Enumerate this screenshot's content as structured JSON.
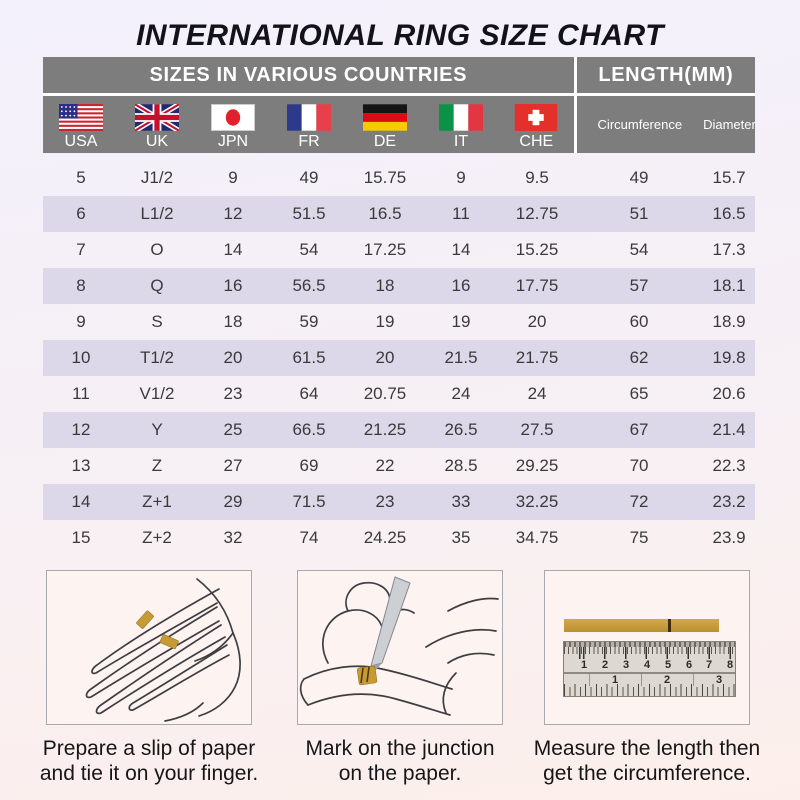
{
  "title": "INTERNATIONAL RING SIZE CHART",
  "table": {
    "header_left": "SIZES IN VARIOUS COUNTRIES",
    "header_right": "LENGTH(MM)",
    "countries": [
      "USA",
      "UK",
      "JPN",
      "FR",
      "DE",
      "IT",
      "CHE"
    ],
    "length_columns": [
      "Circumference",
      "Diameter"
    ],
    "rows": [
      [
        "5",
        "J1/2",
        "9",
        "49",
        "15.75",
        "9",
        "9.5",
        "49",
        "15.7"
      ],
      [
        "6",
        "L1/2",
        "12",
        "51.5",
        "16.5",
        "11",
        "12.75",
        "51",
        "16.5"
      ],
      [
        "7",
        "O",
        "14",
        "54",
        "17.25",
        "14",
        "15.25",
        "54",
        "17.3"
      ],
      [
        "8",
        "Q",
        "16",
        "56.5",
        "18",
        "16",
        "17.75",
        "57",
        "18.1"
      ],
      [
        "9",
        "S",
        "18",
        "59",
        "19",
        "19",
        "20",
        "60",
        "18.9"
      ],
      [
        "10",
        "T1/2",
        "20",
        "61.5",
        "20",
        "21.5",
        "21.75",
        "62",
        "19.8"
      ],
      [
        "11",
        "V1/2",
        "23",
        "64",
        "20.75",
        "24",
        "24",
        "65",
        "20.6"
      ],
      [
        "12",
        "Y",
        "25",
        "66.5",
        "21.25",
        "26.5",
        "27.5",
        "67",
        "21.4"
      ],
      [
        "13",
        "Z",
        "27",
        "69",
        "22",
        "28.5",
        "29.25",
        "70",
        "22.3"
      ],
      [
        "14",
        "Z+1",
        "29",
        "71.5",
        "23",
        "33",
        "32.25",
        "72",
        "23.2"
      ],
      [
        "15",
        "Z+2",
        "32",
        "74",
        "24.25",
        "35",
        "34.75",
        "75",
        "23.9"
      ]
    ]
  },
  "steps": [
    {
      "line1": "Prepare a slip of paper",
      "line2": "and tie it on your finger."
    },
    {
      "line1": "Mark on the junction",
      "line2": "on the paper."
    },
    {
      "line1": "Measure the length then",
      "line2": "get the circumference."
    }
  ],
  "ruler": {
    "cm_numbers": [
      "1",
      "2",
      "3",
      "4",
      "5",
      "6",
      "7",
      "8"
    ],
    "inch_numbers": [
      "1",
      "2",
      "3"
    ]
  },
  "colors": {
    "header_bg": "#7d7d7d",
    "row_stripe": "#dcd7e9",
    "paper_gold": "#c79a35",
    "background_top": "#f3f1fc",
    "background_bottom": "#fcefeb"
  }
}
